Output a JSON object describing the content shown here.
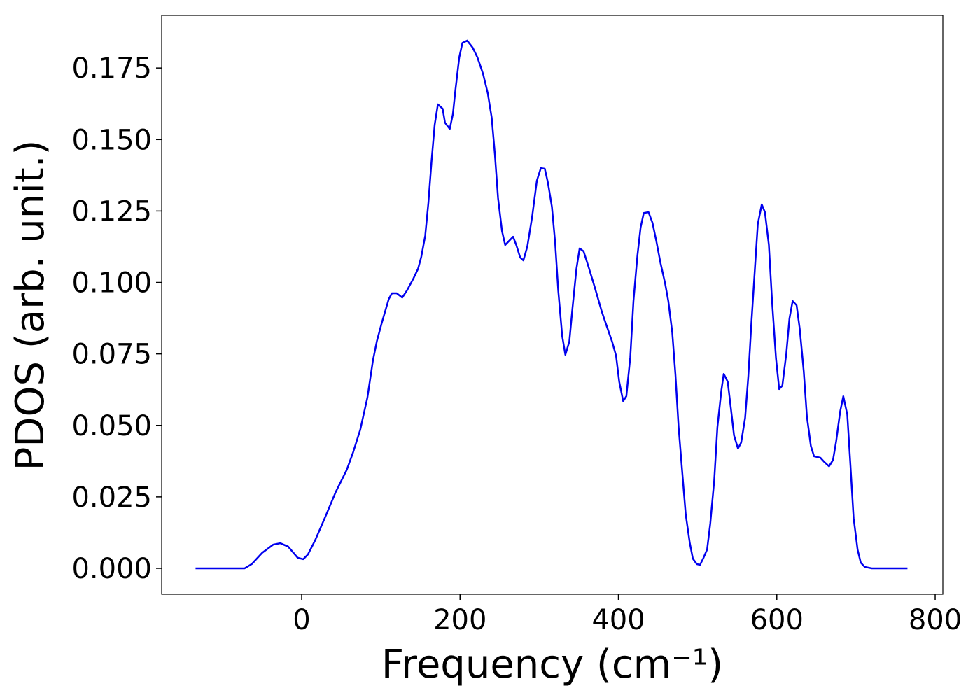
{
  "chart_data": {
    "type": "line",
    "xlabel": "Frequency (cm⁻¹)",
    "ylabel": "PDOS (arb. unit.)",
    "xlim": [
      -176.8,
      809.7
    ],
    "ylim": [
      -0.00906,
      0.1934
    ],
    "xticks": [
      0,
      200,
      400,
      600,
      800
    ],
    "yticks": [
      {
        "value": 0,
        "label": "0.000"
      },
      {
        "value": 0.025,
        "label": "0.025"
      },
      {
        "value": 0.05,
        "label": "0.050"
      },
      {
        "value": 0.075,
        "label": "0.075"
      },
      {
        "value": 0.1,
        "label": "0.100"
      },
      {
        "value": 0.125,
        "label": "0.125"
      },
      {
        "value": 0.15,
        "label": "0.150"
      },
      {
        "value": 0.175,
        "label": "0.175"
      }
    ],
    "grid": false,
    "x": [
      -134,
      -72,
      -63,
      -50,
      -36,
      -27,
      -17,
      -5,
      2,
      8,
      17,
      30,
      43,
      57,
      65,
      74,
      83,
      90,
      95,
      101,
      110,
      114,
      120,
      127,
      133,
      141,
      147,
      151,
      156,
      160,
      164,
      168,
      172,
      178,
      181,
      187,
      191,
      194,
      199,
      203,
      209,
      216,
      222,
      229,
      235,
      240,
      244,
      248,
      253,
      257,
      267,
      271,
      276,
      280,
      285,
      291,
      297,
      302,
      307,
      311,
      316,
      320,
      324,
      329,
      333,
      338,
      342,
      347,
      351,
      356,
      362,
      370,
      379,
      384,
      392,
      397,
      401,
      406,
      410,
      415,
      419,
      424,
      428,
      432,
      438,
      443,
      448,
      453,
      459,
      463,
      468,
      472,
      476,
      481,
      485,
      490,
      494,
      499,
      503,
      507,
      512,
      516,
      521,
      525,
      530,
      533,
      538,
      542,
      546,
      551,
      555,
      560,
      564,
      568,
      572,
      576,
      581,
      585,
      590,
      594,
      599,
      603,
      607,
      612,
      616,
      620,
      625,
      629,
      634,
      638,
      643,
      647,
      655,
      660,
      666,
      671,
      675,
      680,
      684,
      689,
      693,
      697,
      702,
      706,
      711,
      720,
      765
    ],
    "series": [
      {
        "name": "PDOS",
        "color": "#0000ee",
        "values": [
          0,
          0,
          0.0015,
          0.0054,
          0.0083,
          0.0088,
          0.0076,
          0.0037,
          0.0032,
          0.0049,
          0.0098,
          0.0181,
          0.0267,
          0.0345,
          0.0406,
          0.0485,
          0.0597,
          0.0727,
          0.0795,
          0.0857,
          0.0942,
          0.0962,
          0.0962,
          0.0947,
          0.0972,
          0.1013,
          0.1048,
          0.1089,
          0.1163,
          0.1278,
          0.1424,
          0.1552,
          0.1623,
          0.1608,
          0.1559,
          0.1537,
          0.1589,
          0.1669,
          0.1787,
          0.1838,
          0.1846,
          0.1821,
          0.1787,
          0.173,
          0.1662,
          0.1576,
          0.1449,
          0.1295,
          0.118,
          0.1131,
          0.116,
          0.1131,
          0.1087,
          0.1077,
          0.1126,
          0.1229,
          0.1356,
          0.14,
          0.1398,
          0.1349,
          0.1265,
          0.1143,
          0.0972,
          0.0813,
          0.0747,
          0.0793,
          0.091,
          0.1048,
          0.1119,
          0.1109,
          0.1057,
          0.0984,
          0.0898,
          0.0857,
          0.0793,
          0.0744,
          0.0653,
          0.0585,
          0.0602,
          0.0739,
          0.0935,
          0.1094,
          0.1192,
          0.1243,
          0.1246,
          0.1209,
          0.1143,
          0.107,
          0.0996,
          0.0935,
          0.0825,
          0.0678,
          0.0494,
          0.0323,
          0.0188,
          0.0091,
          0.0034,
          0.0015,
          0.0012,
          0.0034,
          0.0066,
          0.0157,
          0.0308,
          0.0494,
          0.0622,
          0.068,
          0.0653,
          0.056,
          0.0465,
          0.0419,
          0.044,
          0.0526,
          0.0671,
          0.0862,
          0.1033,
          0.1204,
          0.1273,
          0.1246,
          0.1131,
          0.0935,
          0.0734,
          0.0627,
          0.0639,
          0.0751,
          0.0874,
          0.0935,
          0.092,
          0.0837,
          0.069,
          0.0531,
          0.0428,
          0.0392,
          0.0387,
          0.0372,
          0.0357,
          0.0379,
          0.0445,
          0.0548,
          0.0602,
          0.0538,
          0.036,
          0.0176,
          0.0066,
          0.002,
          0.0005,
          0,
          0
        ]
      }
    ]
  }
}
